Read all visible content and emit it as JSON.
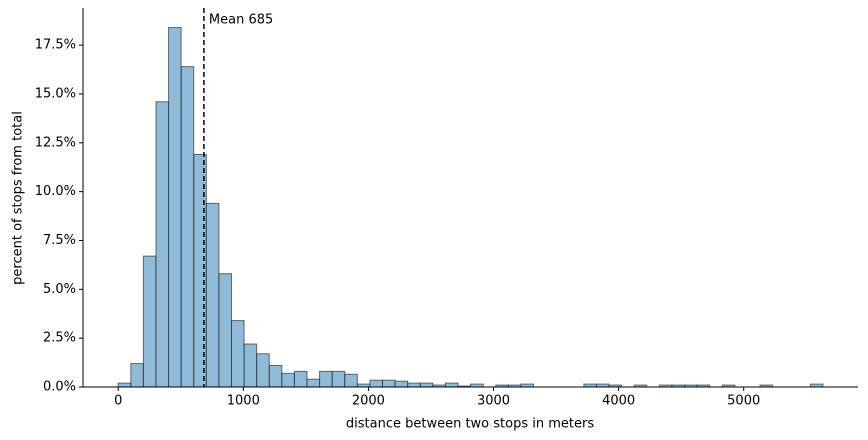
{
  "chart_data": {
    "type": "histogram",
    "xlabel": "distance between two stops in meters",
    "ylabel": "percent of stops from total",
    "bins": [
      0,
      100.6,
      201.2,
      301.8,
      402.4,
      503,
      603.6,
      704.2,
      804.8,
      905.4,
      1006,
      1106.6,
      1207.2,
      1307.8,
      1408.4,
      1509,
      1609.6,
      1710.2,
      1810.8,
      1911.4,
      2012,
      2112.6,
      2213.2,
      2313.8,
      2414.4,
      2515,
      2615.6,
      2716.2,
      2816.8,
      2917.4,
      3018,
      3118.6,
      3219.2,
      3319.8,
      3420.4,
      3521,
      3621.6,
      3722.2,
      3822.8,
      3923.4,
      4024,
      4124.6,
      4225.2,
      4325.8,
      4426.4,
      4527,
      4627.6,
      4728.2,
      4828.8,
      4929.4,
      5030,
      5130.6,
      5231.2,
      5331.8,
      5432.4,
      5533,
      5633.6
    ],
    "values": [
      0.2,
      1.2,
      6.7,
      14.6,
      18.4,
      16.4,
      11.9,
      9.4,
      5.8,
      3.4,
      2.2,
      1.7,
      1.1,
      0.7,
      0.8,
      0.4,
      0.8,
      0.8,
      0.65,
      0.15,
      0.35,
      0.35,
      0.3,
      0.2,
      0.2,
      0.1,
      0.2,
      0.05,
      0.15,
      0,
      0.1,
      0.1,
      0.15,
      0,
      0,
      0,
      0,
      0.15,
      0.15,
      0.1,
      0,
      0.1,
      0,
      0.1,
      0.1,
      0.1,
      0.1,
      0,
      0.1,
      0,
      0,
      0.1,
      0,
      0,
      0,
      0.15
    ],
    "color": "#1f77b4",
    "edgecolor": "#333333",
    "xlim": [
      -281.6,
      5913.6
    ],
    "ylim": [
      0,
      19.4
    ],
    "xticks": [
      0,
      1000,
      2000,
      3000,
      4000,
      5000
    ],
    "yticks": [
      {
        "value": 0,
        "label": "0.0%"
      },
      {
        "value": 2.5,
        "label": "2.5%"
      },
      {
        "value": 5,
        "label": "5.0%"
      },
      {
        "value": 7.5,
        "label": "7.5%"
      },
      {
        "value": 10,
        "label": "10.0%"
      },
      {
        "value": 12.5,
        "label": "12.5%"
      },
      {
        "value": 15,
        "label": "15.0%"
      },
      {
        "value": 17.5,
        "label": "17.5%"
      }
    ],
    "mean_line": {
      "x": 685,
      "label": "Mean 685"
    }
  }
}
